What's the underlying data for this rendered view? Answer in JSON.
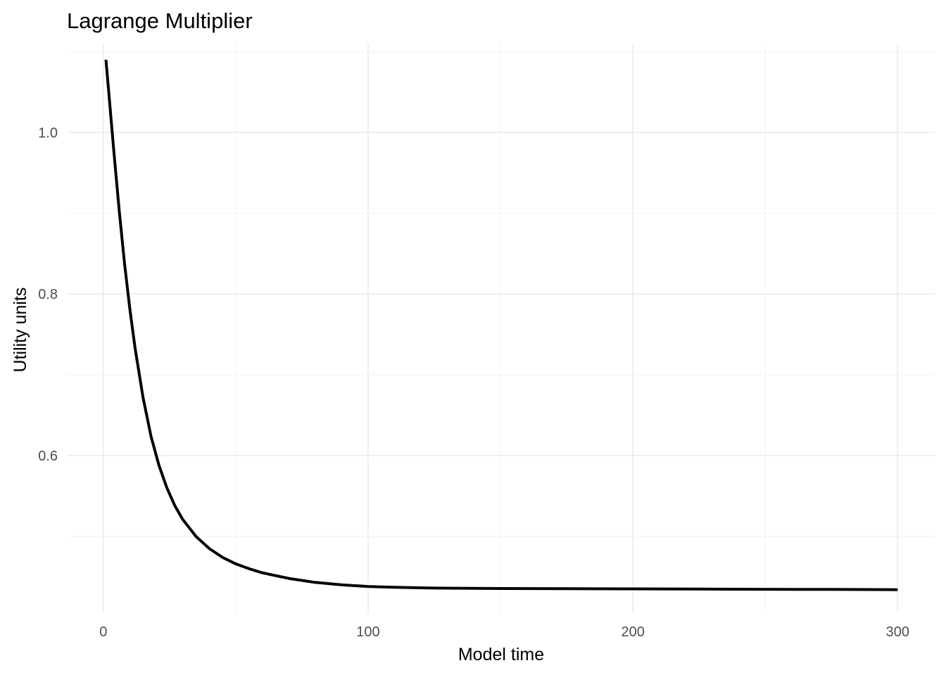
{
  "chart_data": {
    "type": "line",
    "title": "Lagrange Multiplier",
    "xlabel": "Model time",
    "ylabel": "Utility units",
    "xlim": [
      -13.5,
      314
    ],
    "ylim": [
      0.405,
      1.11
    ],
    "x_ticks": [
      0,
      100,
      200,
      300
    ],
    "x_tick_labels": [
      "0",
      "100",
      "200",
      "300"
    ],
    "x_minor_ticks": [
      50,
      150,
      250
    ],
    "y_ticks": [
      0.6,
      0.8,
      1.0
    ],
    "y_tick_labels": [
      "0.6",
      "0.8",
      "1.0"
    ],
    "y_minor_ticks": [
      0.5,
      0.7,
      0.9,
      1.1
    ],
    "grid": true,
    "legend": "none",
    "series": [
      {
        "color": "#000000",
        "x": [
          1,
          2,
          4,
          6,
          8,
          10,
          12,
          15,
          18,
          21,
          24,
          27,
          30,
          35,
          40,
          45,
          50,
          55,
          60,
          70,
          80,
          90,
          100,
          110,
          125,
          150,
          175,
          200,
          225,
          250,
          275,
          300
        ],
        "y": [
          1.09,
          1.052,
          0.976,
          0.903,
          0.838,
          0.782,
          0.733,
          0.672,
          0.624,
          0.588,
          0.56,
          0.538,
          0.521,
          0.5,
          0.485,
          0.474,
          0.466,
          0.46,
          0.455,
          0.448,
          0.443,
          0.44,
          0.438,
          0.437,
          0.436,
          0.4355,
          0.4352,
          0.435,
          0.4348,
          0.4345,
          0.4343,
          0.434
        ]
      }
    ]
  }
}
